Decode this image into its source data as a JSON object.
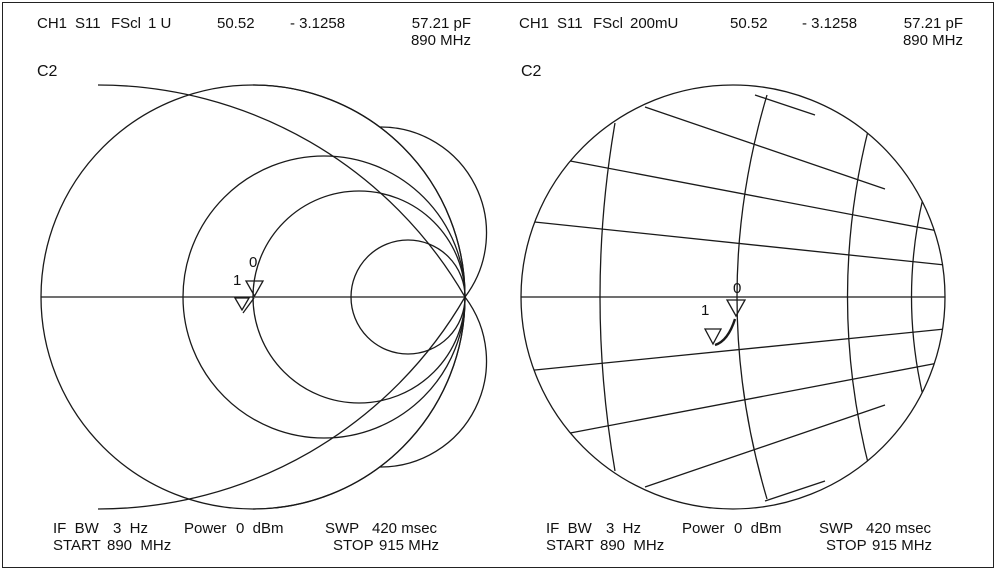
{
  "left_panel": {
    "header": {
      "channel": "CH1",
      "param": "S11",
      "scale_label": "FScl",
      "scale_value": "1 U",
      "real_value": "50.52",
      "imag_value": "- 3.1258",
      "capacitance": "57.21 pF",
      "marker_freq": "890 MHz",
      "trace_label": "C2"
    },
    "footer": {
      "if_bw_label": "IF  BW",
      "if_bw_value": "3  Hz",
      "power_label": "Power",
      "power_value": "0  dBm",
      "swp_label": "SWP",
      "swp_value": "420 msec",
      "start_label": "START",
      "start_value": "890  MHz",
      "stop_label": "STOP",
      "stop_value": "915 MHz"
    },
    "markers": {
      "m1": "1",
      "m0": "0"
    }
  },
  "right_panel": {
    "header": {
      "channel": "CH1",
      "param": "S11",
      "scale_label": "FScl",
      "scale_value": "200mU",
      "real_value": "50.52",
      "imag_value": "- 3.1258",
      "capacitance": "57.21 pF",
      "marker_freq": "890 MHz",
      "trace_label": "C2"
    },
    "footer": {
      "if_bw_label": "IF  BW",
      "if_bw_value": "3  Hz",
      "power_label": "Power",
      "power_value": "0  dBm",
      "swp_label": "SWP",
      "swp_value": "420 msec",
      "start_label": "START",
      "start_value": "890  MHz",
      "stop_label": "STOP",
      "stop_value": "915 MHz"
    },
    "markers": {
      "m1": "1",
      "m0": "0"
    }
  },
  "colors": {
    "line": "#1a1a1a",
    "background": "#ffffff"
  }
}
